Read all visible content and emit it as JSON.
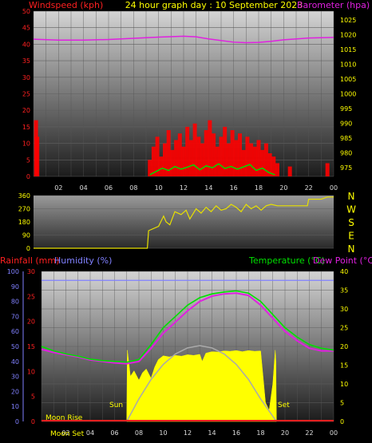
{
  "header": {
    "windspeed_label": "Windspeed (kph)",
    "title": "24 hour graph day : 10 September 2023",
    "barometer_label": "Barometer (hpa)"
  },
  "colors": {
    "wind": "#ff0000",
    "gust_bar": "#ff0000",
    "avg_wind": "#00dd00",
    "barometer": "#e020e0",
    "direction": "#e8e000",
    "rainfall": "#ff2020",
    "humidity": "#8080ff",
    "temperature": "#00e000",
    "dew_point": "#e020e0",
    "solar": "#ffff00",
    "sun_arc": "#aaaaaa",
    "axis_text_right": "#ffff00",
    "axis_text_left_wind": "#ff2020",
    "axis_text_left_hum": "#8080ff",
    "axis_text_left_rain": "#ff2020"
  },
  "x_ticks": [
    "02",
    "04",
    "06",
    "08",
    "10",
    "12",
    "14",
    "16",
    "18",
    "20",
    "22",
    "00"
  ],
  "compass": [
    "N",
    "W",
    "S",
    "E",
    "N"
  ],
  "labels": {
    "rainfall": "Rainfall (mm)",
    "humidity": "Humidity (%)",
    "temperature": "Temperature (°C)",
    "dew_point": "Dew Point (°C)",
    "sunrise": "Sun",
    "sunset": "Set",
    "moon_rise": "Moon Rise",
    "moon_set": "Moon Set"
  },
  "chart_data": [
    {
      "type": "line",
      "name_hint": "wind-barometer",
      "x_hours": [
        0,
        24
      ],
      "left_axis": {
        "ticks": [
          0,
          5,
          10,
          15,
          20,
          25,
          30,
          35,
          40,
          45,
          50
        ],
        "ylim": [
          0,
          50
        ]
      },
      "right_axis": {
        "ticks": [
          975,
          980,
          985,
          990,
          995,
          1000,
          1005,
          1010,
          1015,
          1020,
          1025
        ],
        "ylim": [
          972,
          1028
        ]
      },
      "series": [
        {
          "name": "Barometer (hpa)",
          "axis": "right",
          "x": [
            0,
            2,
            4,
            6,
            8,
            10,
            12,
            13,
            14,
            16,
            17,
            18,
            19,
            20,
            22,
            24
          ],
          "y": [
            1018.5,
            1018.2,
            1018.2,
            1018.4,
            1018.8,
            1019.2,
            1019.5,
            1019.3,
            1018.6,
            1017.5,
            1017.3,
            1017.4,
            1017.8,
            1018.3,
            1018.9,
            1019.1
          ]
        },
        {
          "name": "Windspeed (kph)",
          "axis": "left",
          "style": "bars",
          "x": [
            0.2,
            0.3,
            9.3,
            9.6,
            9.9,
            10.2,
            10.5,
            10.8,
            11.1,
            11.4,
            11.7,
            12.0,
            12.3,
            12.6,
            12.9,
            13.2,
            13.5,
            13.8,
            14.1,
            14.4,
            14.7,
            15.0,
            15.3,
            15.6,
            15.9,
            16.2,
            16.5,
            16.8,
            17.1,
            17.4,
            17.7,
            18.0,
            18.3,
            18.6,
            18.9,
            19.2,
            19.5,
            20.5,
            23.5
          ],
          "y": [
            17,
            12,
            5,
            9,
            12,
            6,
            10,
            14,
            8,
            11,
            13,
            9,
            15,
            11,
            16,
            12,
            10,
            14,
            17,
            13,
            9,
            12,
            15,
            10,
            14,
            11,
            13,
            8,
            12,
            10,
            9,
            11,
            8,
            10,
            7,
            6,
            4,
            3,
            4
          ]
        },
        {
          "name": "Average wind",
          "axis": "left",
          "x": [
            9.3,
            9.8,
            10.3,
            10.8,
            11.3,
            11.8,
            12.3,
            12.8,
            13.3,
            13.8,
            14.3,
            14.8,
            15.3,
            15.8,
            16.3,
            16.8,
            17.3,
            17.8,
            18.3,
            18.8,
            19.3
          ],
          "y": [
            0.5,
            1.5,
            2.5,
            1.8,
            3.0,
            2.2,
            2.8,
            3.5,
            2.0,
            3.2,
            2.6,
            3.8,
            2.4,
            3.0,
            2.2,
            2.9,
            3.6,
            1.8,
            2.5,
            1.2,
            0.5
          ]
        }
      ]
    },
    {
      "type": "line",
      "name_hint": "wind-direction",
      "x_hours": [
        0,
        24
      ],
      "left_axis": {
        "ticks": [
          0,
          90,
          180,
          270,
          360
        ],
        "ylim": [
          0,
          360
        ]
      },
      "series": [
        {
          "name": "Wind direction",
          "x": [
            0,
            9.1,
            9.2,
            10.0,
            10.4,
            10.6,
            10.9,
            11.3,
            11.8,
            12.2,
            12.5,
            13.0,
            13.4,
            13.8,
            14.2,
            14.6,
            15.0,
            15.4,
            15.8,
            16.2,
            16.6,
            17.0,
            17.4,
            17.8,
            18.2,
            18.6,
            19.0,
            19.5,
            20.0,
            21.0,
            21.9,
            22.0,
            23.0,
            23.5,
            24.0
          ],
          "y": [
            0,
            0,
            120,
            150,
            220,
            180,
            160,
            250,
            230,
            260,
            200,
            270,
            240,
            280,
            250,
            290,
            260,
            270,
            300,
            280,
            250,
            300,
            270,
            290,
            260,
            290,
            300,
            290,
            290,
            290,
            290,
            335,
            335,
            350,
            350
          ]
        }
      ]
    },
    {
      "type": "line",
      "name_hint": "temperature-humidity-rain-solar",
      "x_hours": [
        0,
        24
      ],
      "left_axis_humidity": {
        "ticks": [
          0,
          10,
          20,
          30,
          40,
          50,
          60,
          70,
          80,
          90,
          100
        ],
        "ylim": [
          0,
          100
        ]
      },
      "left_axis_rain": {
        "ticks": [
          0,
          5,
          10,
          15,
          20,
          25,
          30
        ],
        "ylim": [
          0,
          30
        ]
      },
      "right_axis_temp": {
        "ticks": [
          0,
          5,
          10,
          15,
          20,
          25,
          30,
          35,
          40
        ],
        "ylim": [
          0,
          40
        ]
      },
      "series": [
        {
          "name": "Temperature (°C)",
          "axis": "right",
          "x": [
            0,
            1,
            2,
            3,
            4,
            5,
            6,
            7,
            8,
            9,
            10,
            11,
            12,
            13,
            14,
            15,
            16,
            17,
            18,
            19,
            20,
            21,
            22,
            23,
            24
          ],
          "y": [
            20,
            18.8,
            18,
            17.4,
            16.6,
            16.2,
            16,
            15.8,
            16.5,
            20.5,
            25,
            28,
            31,
            33,
            34,
            34.5,
            34.8,
            34.2,
            32,
            28.5,
            25,
            22.5,
            20.5,
            19.5,
            19
          ]
        },
        {
          "name": "Dew Point (°C)",
          "axis": "right",
          "x": [
            0,
            1,
            2,
            3,
            4,
            5,
            6,
            7,
            8,
            9,
            10,
            11,
            12,
            13,
            14,
            15,
            16,
            17,
            18,
            19,
            20,
            21,
            22,
            23,
            24
          ],
          "y": [
            19.2,
            18.4,
            17.8,
            17.2,
            16.4,
            16,
            15.6,
            15.4,
            16,
            19.5,
            23.5,
            26.5,
            29.5,
            32,
            33.4,
            34,
            34.2,
            33.6,
            31,
            27.5,
            24,
            21.5,
            19.5,
            18.8,
            18.8
          ]
        },
        {
          "name": "Humidity (%)",
          "axis": "left_humidity",
          "x": [
            0,
            24
          ],
          "y": [
            94,
            94
          ]
        },
        {
          "name": "Solar",
          "axis": "right",
          "style": "area",
          "x": [
            7.0,
            7.05,
            7.3,
            7.6,
            8.0,
            8.3,
            8.6,
            9.0,
            9.3,
            9.6,
            10.0,
            10.5,
            11.0,
            11.5,
            12.0,
            12.5,
            13.0,
            13.2,
            13.5,
            14.0,
            14.5,
            15.0,
            15.5,
            16.0,
            16.5,
            17.0,
            17.5,
            18.0,
            18.4,
            18.7,
            19.0,
            19.2,
            19.25,
            19.3
          ],
          "y": [
            0,
            19,
            12,
            13.5,
            11,
            13,
            14,
            11.5,
            14.5,
            16.5,
            17.5,
            17.2,
            17.6,
            17.4,
            17.8,
            17.6,
            17.9,
            16.0,
            18.2,
            18.6,
            18.5,
            18.8,
            18.7,
            18.9,
            18.6,
            18.9,
            18.7,
            18.8,
            5,
            3,
            10,
            19,
            16,
            0
          ]
        },
        {
          "name": "Sun arc",
          "axis": "right",
          "x": [
            7.0,
            8,
            9,
            10,
            11,
            12,
            13,
            14,
            15,
            16,
            17,
            18,
            19.3
          ],
          "y": [
            0,
            6,
            11.2,
            15.2,
            18,
            19.6,
            20.2,
            19.6,
            18,
            15.2,
            11.2,
            6,
            0
          ]
        },
        {
          "name": "Rainfall (mm)",
          "axis": "left_rain",
          "x": [
            0,
            24
          ],
          "y": [
            0,
            0
          ]
        }
      ]
    }
  ]
}
